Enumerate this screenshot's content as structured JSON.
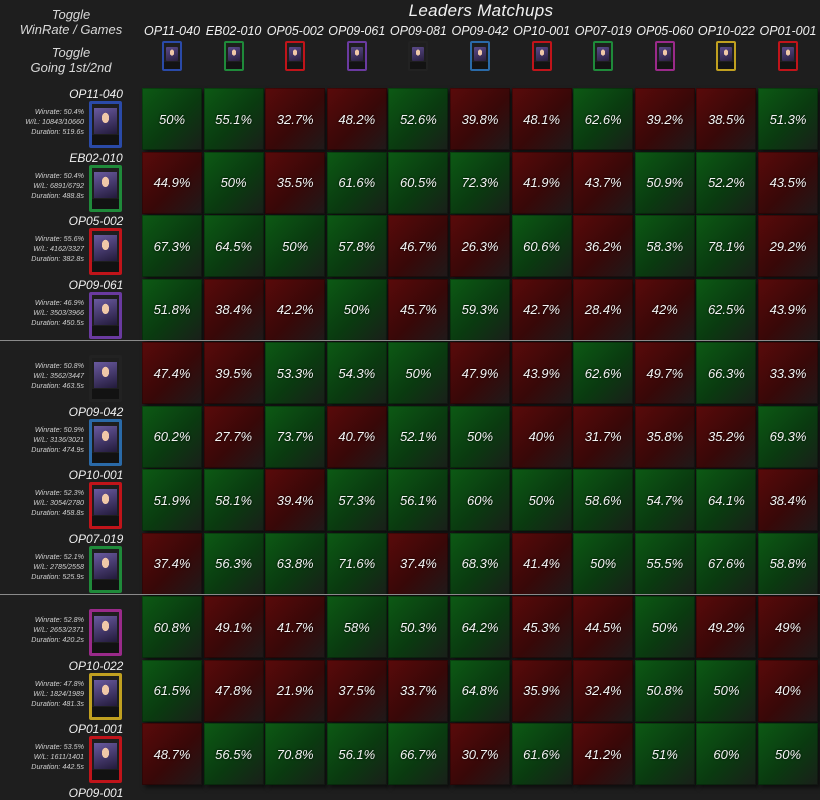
{
  "toggles": {
    "winrate_games_line1": "Toggle",
    "winrate_games_line2": "WinRate / Games",
    "going_line1": "Toggle",
    "going_line2": "Going 1st/2nd"
  },
  "title": "Leaders Matchups",
  "columns": [
    "OP11-040",
    "EB02-010",
    "OP05-002",
    "OP09-061",
    "OP09-081",
    "OP09-042",
    "OP10-001",
    "OP07-019",
    "OP05-060",
    "OP10-022",
    "OP01-001"
  ],
  "card_colors": [
    "#2a4aa8",
    "#1f8a3a",
    "#c0141a",
    "#6a3aa0",
    "#222222",
    "#2a6aa8",
    "#c0141a",
    "#1f8a3a",
    "#9a2a8a",
    "#c0a020",
    "#c0141a"
  ],
  "rows": [
    {
      "id": "OP11-040",
      "winrate": "Winrate: 50.4%",
      "wl": "W/L: 10843/10660",
      "duration": "Duration: 519.6s",
      "values": [
        "50%",
        "55.1%",
        "32.7%",
        "48.2%",
        "52.6%",
        "39.8%",
        "48.1%",
        "62.6%",
        "39.2%",
        "38.5%",
        "51.3%"
      ]
    },
    {
      "id": "EB02-010",
      "winrate": "Winrate: 50.4%",
      "wl": "W/L: 6891/6792",
      "duration": "Duration: 488.8s",
      "values": [
        "44.9%",
        "50%",
        "35.5%",
        "61.6%",
        "60.5%",
        "72.3%",
        "41.9%",
        "43.7%",
        "50.9%",
        "52.2%",
        "43.5%"
      ]
    },
    {
      "id": "OP05-002",
      "winrate": "Winrate: 55.6%",
      "wl": "W/L: 4162/3327",
      "duration": "Duration: 382.8s",
      "values": [
        "67.3%",
        "64.5%",
        "50%",
        "57.8%",
        "46.7%",
        "26.3%",
        "60.6%",
        "36.2%",
        "58.3%",
        "78.1%",
        "29.2%"
      ]
    },
    {
      "id": "OP09-061",
      "winrate": "Winrate: 46.9%",
      "wl": "W/L: 3503/3966",
      "duration": "Duration: 450.5s",
      "values": [
        "51.8%",
        "38.4%",
        "42.2%",
        "50%",
        "45.7%",
        "59.3%",
        "42.7%",
        "28.4%",
        "42%",
        "62.5%",
        "43.9%"
      ]
    },
    {
      "id": "",
      "winrate": "Winrate: 50.8%",
      "wl": "W/L: 3562/3447",
      "duration": "Duration: 463.5s",
      "values": [
        "47.4%",
        "39.5%",
        "53.3%",
        "54.3%",
        "50%",
        "47.9%",
        "43.9%",
        "62.6%",
        "49.7%",
        "66.3%",
        "33.3%"
      ]
    },
    {
      "id": "OP09-042",
      "winrate": "Winrate: 50.9%",
      "wl": "W/L: 3136/3021",
      "duration": "Duration: 474.9s",
      "values": [
        "60.2%",
        "27.7%",
        "73.7%",
        "40.7%",
        "52.1%",
        "50%",
        "40%",
        "31.7%",
        "35.8%",
        "35.2%",
        "69.3%"
      ]
    },
    {
      "id": "OP10-001",
      "winrate": "Winrate: 52.3%",
      "wl": "W/L: 3054/2780",
      "duration": "Duration: 458.8s",
      "values": [
        "51.9%",
        "58.1%",
        "39.4%",
        "57.3%",
        "56.1%",
        "60%",
        "50%",
        "58.6%",
        "54.7%",
        "64.1%",
        "38.4%"
      ]
    },
    {
      "id": "OP07-019",
      "winrate": "Winrate: 52.1%",
      "wl": "W/L: 2785/2558",
      "duration": "Duration: 525.9s",
      "values": [
        "37.4%",
        "56.3%",
        "63.8%",
        "71.6%",
        "37.4%",
        "68.3%",
        "41.4%",
        "50%",
        "55.5%",
        "67.6%",
        "58.8%"
      ]
    },
    {
      "id": "",
      "winrate": "Winrate: 52.8%",
      "wl": "W/L: 2653/2371",
      "duration": "Duration: 420.2s",
      "values": [
        "60.8%",
        "49.1%",
        "41.7%",
        "58%",
        "50.3%",
        "64.2%",
        "45.3%",
        "44.5%",
        "50%",
        "49.2%",
        "49%"
      ]
    },
    {
      "id": "OP10-022",
      "winrate": "Winrate: 47.8%",
      "wl": "W/L: 1824/1989",
      "duration": "Duration: 481.3s",
      "values": [
        "61.5%",
        "47.8%",
        "21.9%",
        "37.5%",
        "33.7%",
        "64.8%",
        "35.9%",
        "32.4%",
        "50.8%",
        "50%",
        "40%"
      ]
    },
    {
      "id": "OP01-001",
      "winrate": "Winrate: 53.5%",
      "wl": "W/L: 1611/1401",
      "duration": "Duration: 442.5s",
      "values": [
        "48.7%",
        "56.5%",
        "70.8%",
        "56.1%",
        "66.7%",
        "30.7%",
        "61.6%",
        "41.2%",
        "51%",
        "60%",
        "50%"
      ]
    }
  ],
  "partial_row_label": "OP09-001"
}
